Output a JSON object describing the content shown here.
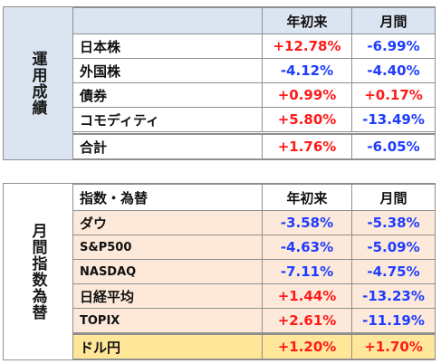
{
  "section1": {
    "title": "運用成績",
    "header": {
      "label": "",
      "ytd": "年初来",
      "month": "月間"
    },
    "rows": [
      {
        "label": "日本株",
        "ytd": "+12.78%",
        "month": "-6.99%"
      },
      {
        "label": "外国株",
        "ytd": "-4.12%",
        "month": "-4.40%"
      },
      {
        "label": "債券",
        "ytd": "+0.99%",
        "month": "+0.17%"
      },
      {
        "label": "コモディティ",
        "ytd": "+5.80%",
        "month": "-13.49%"
      }
    ],
    "total": {
      "label": "合計",
      "ytd": "+1.76%",
      "month": "-6.05%"
    }
  },
  "section2": {
    "title": "月間指数為替",
    "header": {
      "label": "指数・為替",
      "ytd": "年初来",
      "month": "月間"
    },
    "rows": [
      {
        "label": "ダウ",
        "ytd": "-3.58%",
        "month": "-5.38%"
      },
      {
        "label": "S&P500",
        "ytd": "-4.63%",
        "month": "-5.09%"
      },
      {
        "label": "NASDAQ",
        "ytd": "-7.11%",
        "month": "-4.75%"
      },
      {
        "label": "日経平均",
        "ytd": "+1.44%",
        "month": "-13.23%"
      },
      {
        "label": "TOPIX",
        "ytd": "+2.61%",
        "month": "-11.19%"
      }
    ],
    "total": {
      "label": "ドル円",
      "ytd": "+1.20%",
      "month": "+1.70%"
    }
  },
  "colors": {
    "positive": "#ff1a1a",
    "negative": "#1f3cff",
    "section1_side": "#dbe5f1",
    "section1_header": "#dbe5f1",
    "section1_body": "#ffffff",
    "section2_side": "#ffffff",
    "section2_header": "#ffffff",
    "section2_body": "#fde9d9",
    "section2_total": "#ffe699"
  }
}
